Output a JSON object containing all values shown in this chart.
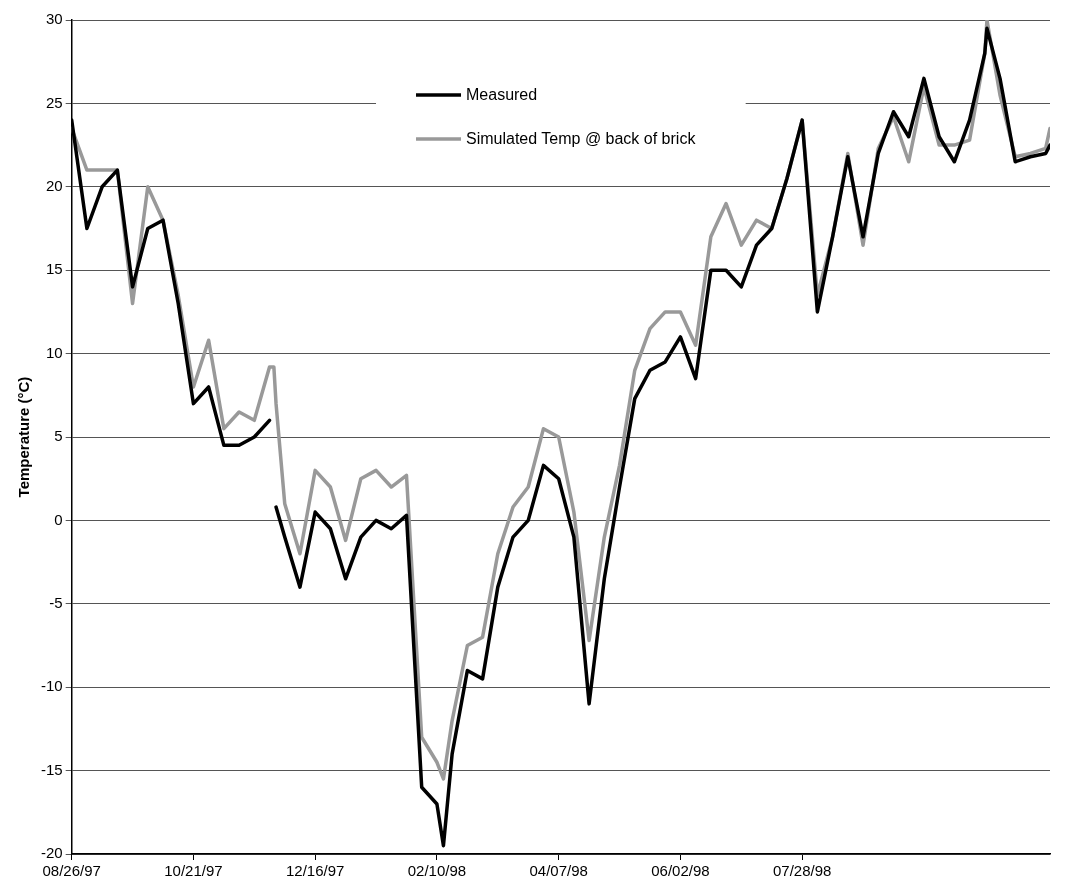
{
  "chart_data": {
    "type": "line",
    "ylabel": "Temperature (°C)",
    "x": [
      "1997-08-26",
      "1997-09-02",
      "1997-09-09",
      "1997-09-16",
      "1997-09-23",
      "1997-09-30",
      "1997-10-07",
      "1997-10-14",
      "1997-10-21",
      "1997-10-28",
      "1997-11-04",
      "1997-11-11",
      "1997-11-18",
      "1997-11-25",
      "1997-11-27",
      "1997-11-28",
      "1997-12-02",
      "1997-12-09",
      "1997-12-16",
      "1997-12-23",
      "1997-12-30",
      "1998-01-06",
      "1998-01-13",
      "1998-01-20",
      "1998-01-27",
      "1998-02-03",
      "1998-02-10",
      "1998-02-13",
      "1998-02-17",
      "1998-02-24",
      "1998-03-03",
      "1998-03-10",
      "1998-03-17",
      "1998-03-24",
      "1998-03-31",
      "1998-04-07",
      "1998-04-14",
      "1998-04-21",
      "1998-04-28",
      "1998-05-05",
      "1998-05-12",
      "1998-05-19",
      "1998-05-26",
      "1998-06-02",
      "1998-06-09",
      "1998-06-16",
      "1998-06-23",
      "1998-06-30",
      "1998-07-07",
      "1998-07-14",
      "1998-07-21",
      "1998-07-28",
      "1998-08-04",
      "1998-08-11",
      "1998-08-18",
      "1998-08-25",
      "1998-09-01",
      "1998-09-08",
      "1998-09-15",
      "1998-09-22",
      "1998-09-29",
      "1998-10-06",
      "1998-10-13",
      "1998-10-20",
      "1998-10-21",
      "1998-10-27",
      "1998-11-03",
      "1998-11-10",
      "1998-11-17",
      "1998-11-19"
    ],
    "series": [
      {
        "name": "Measured",
        "color": "#000000",
        "values": [
          24,
          17.5,
          20,
          21,
          14,
          17.5,
          18,
          13,
          7,
          8,
          4.5,
          4.5,
          5,
          6,
          null,
          0.8,
          -1,
          -4,
          0.5,
          -0.5,
          -3.5,
          -1,
          0,
          -0.5,
          0.3,
          -16,
          -17,
          -19.5,
          -14,
          -9,
          -9.5,
          -4,
          -1,
          0,
          3.3,
          2.5,
          -1,
          -11,
          -3.5,
          2,
          7.3,
          9,
          9.5,
          11,
          8.5,
          15,
          15,
          14,
          16.5,
          17.5,
          20.5,
          24,
          12.5,
          17,
          21.8,
          17,
          22,
          24.5,
          23,
          26.5,
          23,
          21.5,
          24,
          28,
          29.5,
          26.5,
          21.5,
          21.8,
          22,
          22.5
        ]
      },
      {
        "name": "Simulated Temp @ back of brick",
        "color": "#999999",
        "values": [
          23.5,
          21,
          21,
          21,
          13,
          20,
          18,
          13.5,
          8,
          10.8,
          5.5,
          6.5,
          6,
          9.2,
          9.2,
          7,
          1,
          -2,
          3,
          2,
          -1.2,
          2.5,
          3,
          2,
          2.7,
          -13,
          -14.5,
          -15.5,
          -12,
          -7.5,
          -7,
          -2,
          0.8,
          2,
          5.5,
          5,
          0.5,
          -7.2,
          -1,
          3.3,
          9,
          11.5,
          12.5,
          12.5,
          10.5,
          17,
          19,
          16.5,
          18,
          17.5,
          20.5,
          24,
          13.5,
          17,
          22,
          16.5,
          22.3,
          24.2,
          21.5,
          26,
          22.5,
          22.5,
          22.8,
          28,
          30,
          25.5,
          21.8,
          22,
          22.3,
          23.5
        ]
      }
    ],
    "xlim": [
      "1997-08-26",
      "1998-11-19"
    ],
    "xticks": [
      {
        "value": "1997-08-26",
        "label": "08/26/97"
      },
      {
        "value": "1997-10-21",
        "label": "10/21/97"
      },
      {
        "value": "1997-12-16",
        "label": "12/16/97"
      },
      {
        "value": "1998-02-10",
        "label": "02/10/98"
      },
      {
        "value": "1998-04-07",
        "label": "04/07/98"
      },
      {
        "value": "1998-06-02",
        "label": "06/02/98"
      },
      {
        "value": "1998-07-28",
        "label": "07/28/98"
      }
    ],
    "ylim": [
      -20,
      30
    ],
    "yticks": [
      -20,
      -15,
      -10,
      -5,
      0,
      5,
      10,
      15,
      20,
      25,
      30
    ],
    "grid": "y",
    "legend": "top",
    "marker": "none",
    "line_style": "solid"
  }
}
